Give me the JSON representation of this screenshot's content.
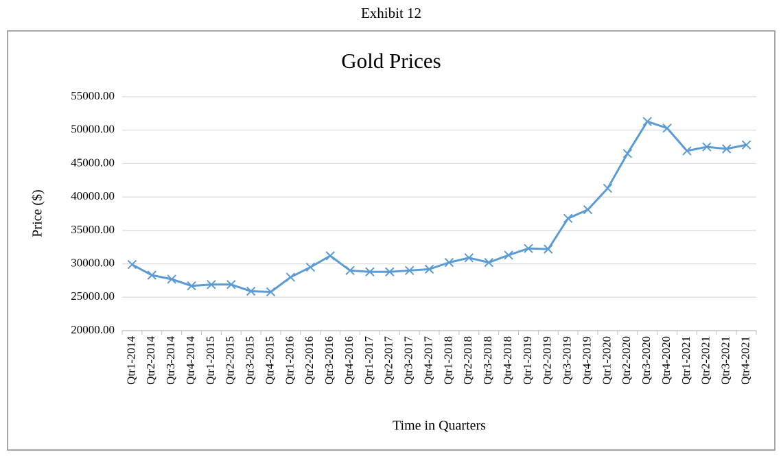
{
  "caption": "Exhibit 12",
  "chart_data": {
    "type": "line",
    "title": "Gold Prices",
    "x_label": "Time in Quarters",
    "y_label": "Price ($)",
    "categories": [
      "Qtr1-2014",
      "Qtr2-2014",
      "Qtr3-2014",
      "Qtr4-2014",
      "Qtr1-2015",
      "Qtr2-2015",
      "Qtr3-2015",
      "Qtr4-2015",
      "Qtr1-2016",
      "Qtr2-2016",
      "Qtr3-2016",
      "Qtr4-2016",
      "Qtr1-2017",
      "Qtr2-2017",
      "Qtr3-2017",
      "Qtr4-2017",
      "Qtr1-2018",
      "Qtr2-2018",
      "Qtr3-2018",
      "Qtr4-2018",
      "Qtr1-2019",
      "Qtr2-2019",
      "Qtr3-2019",
      "Qtr4-2019",
      "Qtr1-2020",
      "Qtr2-2020",
      "Qtr3-2020",
      "Qtr4-2020",
      "Qtr1-2021",
      "Qtr2-2021",
      "Qtr3-2021",
      "Qtr4-2021"
    ],
    "values": [
      29900,
      28300,
      27700,
      26700,
      26900,
      26900,
      25900,
      25800,
      28000,
      29500,
      31200,
      29000,
      28800,
      28800,
      29000,
      29200,
      30200,
      30900,
      30200,
      31300,
      32300,
      32200,
      36800,
      38100,
      41300,
      46500,
      51300,
      50300,
      46900,
      47500,
      47200,
      47800
    ],
    "color": "#5b9bd5",
    "marker": "x",
    "ylim": [
      20000,
      55000
    ],
    "yticks": [
      {
        "value": 20000,
        "label": "20000.00"
      },
      {
        "value": 25000,
        "label": "25000.00"
      },
      {
        "value": 30000,
        "label": "30000.00"
      },
      {
        "value": 35000,
        "label": "35000.00"
      },
      {
        "value": 40000,
        "label": "40000.00"
      },
      {
        "value": 45000,
        "label": "45000.00"
      },
      {
        "value": 50000,
        "label": "50000.00"
      },
      {
        "value": 55000,
        "label": "55000.00"
      }
    ],
    "grid": true
  }
}
